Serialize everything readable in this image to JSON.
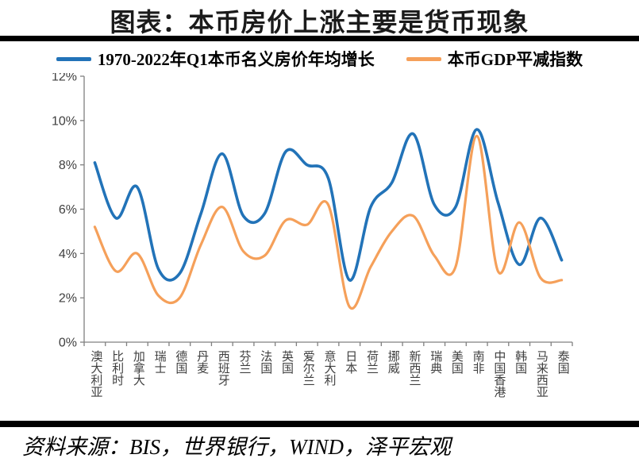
{
  "title": "图表：本币房价上涨主要是货币现象",
  "source": "资料来源：BIS，世界银行，WIND，泽平宏观",
  "colors": {
    "house_price_line": "#2273B8",
    "gdp_deflator_line": "#F5A05A",
    "axis": "#808080",
    "axis_text": "#404040",
    "divider": "#000000"
  },
  "chart_data": {
    "type": "line",
    "title": "图表：本币房价上涨主要是货币现象",
    "categories": [
      "澳大利亚",
      "比利时",
      "加拿大",
      "瑞士",
      "德国",
      "丹麦",
      "西班牙",
      "芬兰",
      "法国",
      "英国",
      "爱尔兰",
      "意大利",
      "日本",
      "荷兰",
      "挪威",
      "新西兰",
      "瑞典",
      "美国",
      "南非",
      "中国香港",
      "韩国",
      "马来西亚",
      "泰国"
    ],
    "series": [
      {
        "name": "1970-2022年Q1本币名义房价年均增长",
        "color": "#2273B8",
        "values": [
          8.1,
          5.6,
          7.0,
          3.3,
          3.1,
          5.8,
          8.5,
          5.7,
          5.8,
          8.6,
          8.0,
          7.4,
          2.8,
          6.1,
          7.2,
          9.4,
          6.2,
          6.1,
          9.6,
          6.3,
          3.5,
          5.6,
          3.7
        ]
      },
      {
        "name": "本币GDP平减指数",
        "color": "#F5A05A",
        "values": [
          5.2,
          3.2,
          4.0,
          2.1,
          2.0,
          4.4,
          6.1,
          4.1,
          3.9,
          5.5,
          5.3,
          6.2,
          1.6,
          3.4,
          5.0,
          5.7,
          3.9,
          3.4,
          9.3,
          3.2,
          5.4,
          2.9,
          2.8
        ]
      }
    ],
    "xlabel": "",
    "ylabel": "",
    "ylim": [
      0,
      12
    ],
    "ytick_step": 2,
    "ytick_suffix": "%",
    "grid": false,
    "legend_position": "top",
    "smooth": true
  }
}
